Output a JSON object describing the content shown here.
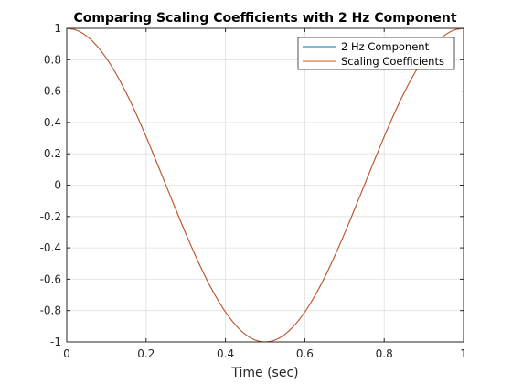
{
  "chart_data": {
    "type": "line",
    "title": "Comparing Scaling Coefficients with 2 Hz Component",
    "xlabel": "Time (sec)",
    "ylabel": "",
    "xlim": [
      0,
      1
    ],
    "ylim": [
      -1,
      1
    ],
    "xticks": [
      0,
      0.2,
      0.4,
      0.6,
      0.8,
      1
    ],
    "xtick_labels": [
      "0",
      "0.2",
      "0.4",
      "0.6",
      "0.8",
      "1"
    ],
    "yticks": [
      -1,
      -0.8,
      -0.6,
      -0.4,
      -0.2,
      0,
      0.2,
      0.4,
      0.6,
      0.8,
      1
    ],
    "ytick_labels": [
      "-1",
      "-0.8",
      "-0.6",
      "-0.4",
      "-0.2",
      "0",
      "0.2",
      "0.4",
      "0.6",
      "0.8",
      "1"
    ],
    "grid": true,
    "legend_position": "top-right",
    "series": [
      {
        "name": "2 Hz Component",
        "color": "#0072BD",
        "x": [
          0,
          0.025,
          0.05,
          0.075,
          0.1,
          0.125,
          0.15,
          0.175,
          0.2,
          0.225,
          0.25,
          0.275,
          0.3,
          0.325,
          0.35,
          0.375,
          0.4,
          0.425,
          0.45,
          0.475,
          0.5,
          0.525,
          0.55,
          0.575,
          0.6,
          0.625,
          0.65,
          0.675,
          0.7,
          0.725,
          0.75,
          0.775,
          0.8,
          0.825,
          0.85,
          0.875,
          0.9,
          0.925,
          0.95,
          0.975,
          1
        ],
        "y": [
          1,
          0.988,
          0.951,
          0.891,
          0.809,
          0.707,
          0.588,
          0.454,
          0.309,
          0.156,
          0,
          -0.156,
          -0.309,
          -0.454,
          -0.588,
          -0.707,
          -0.809,
          -0.891,
          -0.951,
          -0.988,
          -1,
          -0.988,
          -0.951,
          -0.891,
          -0.809,
          -0.707,
          -0.588,
          -0.454,
          -0.309,
          -0.156,
          0,
          0.156,
          0.309,
          0.454,
          0.588,
          0.707,
          0.809,
          0.891,
          0.951,
          0.988,
          1
        ]
      },
      {
        "name": "Scaling Coefficients",
        "color": "#D95319",
        "x": [
          0,
          0.025,
          0.05,
          0.075,
          0.1,
          0.125,
          0.15,
          0.175,
          0.2,
          0.225,
          0.25,
          0.275,
          0.3,
          0.325,
          0.35,
          0.375,
          0.4,
          0.425,
          0.45,
          0.475,
          0.5,
          0.525,
          0.55,
          0.575,
          0.6,
          0.625,
          0.65,
          0.675,
          0.7,
          0.725,
          0.75,
          0.775,
          0.8,
          0.825,
          0.85,
          0.875,
          0.9,
          0.925,
          0.95,
          0.975,
          1
        ],
        "y": [
          1,
          0.988,
          0.951,
          0.891,
          0.809,
          0.707,
          0.588,
          0.454,
          0.309,
          0.156,
          0,
          -0.156,
          -0.309,
          -0.454,
          -0.588,
          -0.707,
          -0.809,
          -0.891,
          -0.951,
          -0.988,
          -1,
          -0.988,
          -0.951,
          -0.891,
          -0.809,
          -0.707,
          -0.588,
          -0.454,
          -0.309,
          -0.156,
          0,
          0.156,
          0.309,
          0.454,
          0.588,
          0.707,
          0.809,
          0.891,
          0.951,
          0.988,
          1
        ]
      }
    ]
  }
}
